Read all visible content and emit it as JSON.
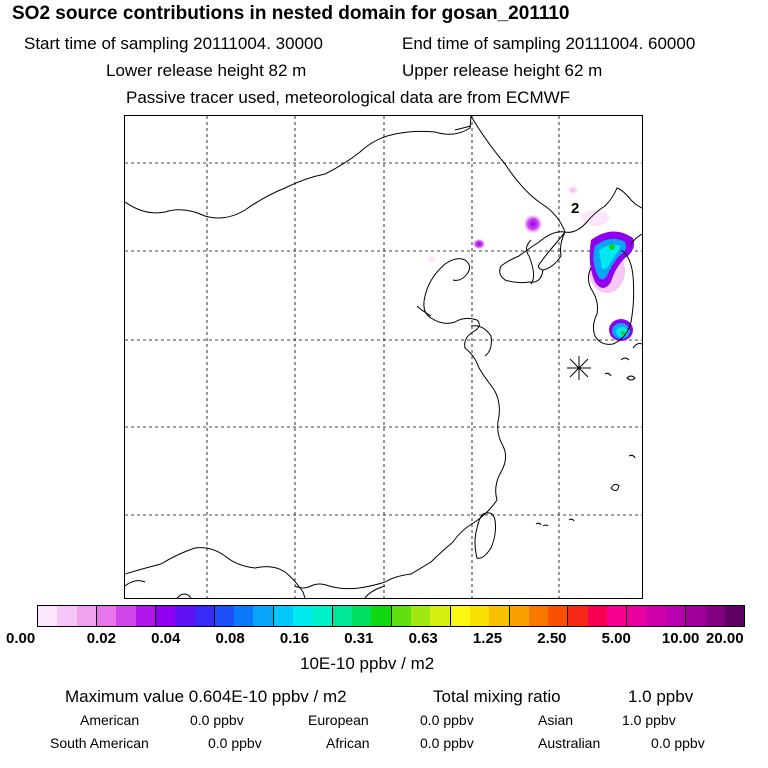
{
  "header": {
    "title": "SO2 source contributions in nested domain for gosan_201110",
    "start_time": "Start time of sampling 20111004. 30000",
    "end_time": "End time of sampling 20111004. 60000",
    "lower_height": "Lower release height   82 m",
    "upper_height": "Upper release height   62 m",
    "tracer_note": "Passive tracer used, meteorological data are from ECMWF"
  },
  "map": {
    "contour_label": "2",
    "receptor_marker": "star-icon"
  },
  "colorbar": {
    "colors": [
      "#fbe6fb",
      "#f6c6f6",
      "#f0a2f0",
      "#e876ea",
      "#d048ea",
      "#b016ea",
      "#9000f0",
      "#6010f4",
      "#3a2af6",
      "#1e50f8",
      "#0a7af8",
      "#0aa4f8",
      "#00c8f8",
      "#00e8f0",
      "#00f0c8",
      "#00e898",
      "#00e060",
      "#10d810",
      "#60e010",
      "#a0e810",
      "#d8f010",
      "#f8f810",
      "#f8e000",
      "#f8c000",
      "#f8a000",
      "#f87800",
      "#f85000",
      "#f82818",
      "#f80050",
      "#f80090",
      "#e800a0",
      "#d000a8",
      "#b800b0",
      "#a00098",
      "#800080",
      "#600060"
    ],
    "ticks": [
      "0.00",
      "0.02",
      "0.04",
      "0.08",
      "0.16",
      "0.31",
      "0.63",
      "1.25",
      "2.50",
      "5.00",
      "10.00",
      "20.00"
    ],
    "units": "10E-10 ppbv / m2"
  },
  "summary": {
    "maximum": "Maximum value  0.604E-10 ppbv / m2",
    "total_label": "Total mixing ratio",
    "total_value": "1.0 ppbv",
    "regions": [
      {
        "name": "American",
        "value": "0.0 ppbv"
      },
      {
        "name": "European",
        "value": "0.0 ppbv"
      },
      {
        "name": "Asian",
        "value": "1.0 ppbv"
      },
      {
        "name": "South American",
        "value": "0.0 ppbv"
      },
      {
        "name": "African",
        "value": "0.0 ppbv"
      },
      {
        "name": "Australian",
        "value": "0.0 ppbv"
      }
    ]
  }
}
